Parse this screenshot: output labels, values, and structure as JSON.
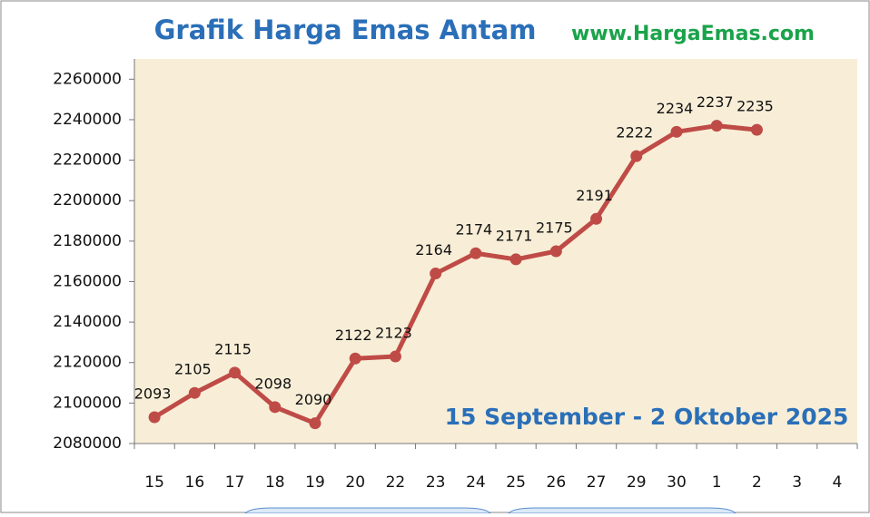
{
  "chart_data": {
    "type": "line",
    "title": "Grafik Harga Emas Antam",
    "subtitle": "www.HargaEmas.com",
    "annotation": "15 September - 2 Oktober 2025",
    "categories": [
      "15",
      "16",
      "17",
      "18",
      "19",
      "20",
      "22",
      "23",
      "24",
      "25",
      "26",
      "27",
      "29",
      "30",
      "1",
      "2",
      "3",
      "4"
    ],
    "series": [
      {
        "name": "Harga Emas Antam",
        "color": "#bf4b47",
        "values": [
          2093000,
          2105000,
          2115000,
          2098000,
          2090000,
          2122000,
          2123000,
          2164000,
          2174000,
          2171000,
          2175000,
          2191000,
          2222000,
          2234000,
          2237000,
          2235000,
          null,
          null
        ],
        "value_labels": [
          "2093",
          "2105",
          "2115",
          "2098",
          "2090",
          "2122",
          "2123",
          "2164",
          "2174",
          "2171",
          "2175",
          "2191",
          "2222",
          "2234",
          "2237",
          "2235",
          null,
          null
        ]
      }
    ],
    "ylim": [
      2080000,
      2270000
    ],
    "yticks": [
      2080000,
      2100000,
      2120000,
      2140000,
      2160000,
      2180000,
      2200000,
      2220000,
      2240000,
      2260000
    ],
    "grid": false,
    "legend": false
  }
}
